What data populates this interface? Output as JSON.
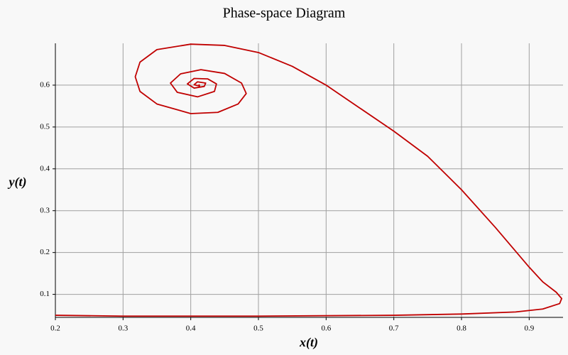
{
  "chart_data": {
    "type": "line",
    "title": "Phase-space Diagram",
    "x_label": "x(t)",
    "y_label": "y(t)",
    "x": [
      0.2,
      0.3,
      0.5,
      0.7,
      0.8,
      0.88,
      0.92,
      0.945,
      0.948,
      0.94,
      0.92,
      0.9,
      0.85,
      0.8,
      0.75,
      0.7,
      0.65,
      0.6,
      0.55,
      0.5,
      0.45,
      0.4,
      0.35,
      0.325,
      0.318,
      0.325,
      0.35,
      0.4,
      0.44,
      0.47,
      0.482,
      0.475,
      0.45,
      0.415,
      0.385,
      0.37,
      0.38,
      0.41,
      0.435,
      0.438,
      0.425,
      0.405,
      0.395,
      0.405,
      0.42,
      0.422,
      0.41,
      0.405,
      0.413,
      0.412
    ],
    "values": [
      0.05,
      0.048,
      0.048,
      0.05,
      0.053,
      0.058,
      0.065,
      0.078,
      0.09,
      0.105,
      0.13,
      0.165,
      0.26,
      0.35,
      0.43,
      0.49,
      0.545,
      0.6,
      0.645,
      0.678,
      0.695,
      0.698,
      0.685,
      0.655,
      0.62,
      0.585,
      0.555,
      0.532,
      0.535,
      0.555,
      0.58,
      0.605,
      0.628,
      0.637,
      0.627,
      0.605,
      0.583,
      0.572,
      0.585,
      0.603,
      0.615,
      0.616,
      0.603,
      0.593,
      0.597,
      0.605,
      0.608,
      0.601,
      0.598,
      0.602
    ],
    "color": "#c00000",
    "xlim": [
      0.2,
      0.95
    ],
    "xticks": [
      0.2,
      0.3,
      0.4,
      0.5,
      0.6,
      0.7,
      0.8,
      0.9
    ],
    "ylim": [
      0.045,
      0.7
    ],
    "yticks": [
      0.1,
      0.2,
      0.3,
      0.4,
      0.5,
      0.6
    ],
    "grid": true
  }
}
